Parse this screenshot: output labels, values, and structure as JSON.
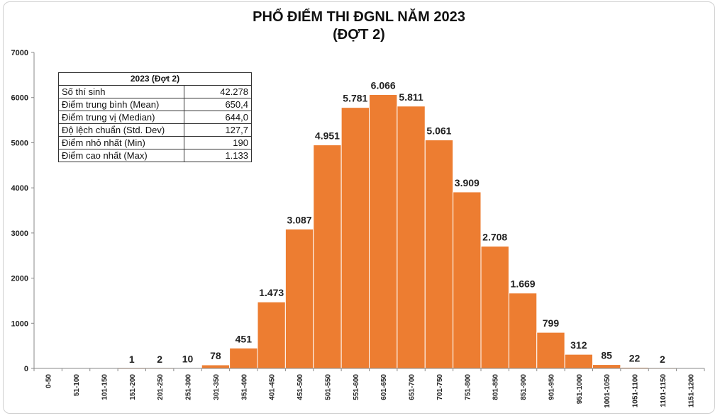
{
  "chart_data": {
    "type": "bar",
    "title": "PHỔ ĐIỂM THI ĐGNL NĂM 2023",
    "subtitle": "(ĐỢT 2)",
    "xlabel": "",
    "ylabel": "",
    "ylim": [
      0,
      7000
    ],
    "yticks": [
      "0",
      "1000",
      "2000",
      "3000",
      "4000",
      "5000",
      "6000",
      "7000"
    ],
    "grid": false,
    "bar_color": "#ED7D31",
    "categories": [
      "0-50",
      "51-100",
      "101-150",
      "151-200",
      "201-250",
      "251-300",
      "301-350",
      "351-400",
      "401-450",
      "451-500",
      "501-550",
      "551-600",
      "601-650",
      "651-700",
      "701-750",
      "751-800",
      "801-850",
      "851-900",
      "901-950",
      "951-1000",
      "1001-1050",
      "1051-1100",
      "1101-1150",
      "1151-1200"
    ],
    "values": [
      0,
      0,
      0,
      1,
      2,
      10,
      78,
      451,
      1473,
      3087,
      4951,
      5781,
      6066,
      5811,
      5061,
      3909,
      2708,
      1669,
      799,
      312,
      85,
      22,
      2,
      0
    ],
    "data_labels": [
      "",
      "",
      "",
      "1",
      "2",
      "10",
      "78",
      "451",
      "1.473",
      "3.087",
      "4.951",
      "5.781",
      "6.066",
      "5.811",
      "5.061",
      "3.909",
      "2.708",
      "1.669",
      "799",
      "312",
      "85",
      "22",
      "2",
      ""
    ]
  },
  "stats_table": {
    "header": "2023 (Đợt 2)",
    "rows": [
      {
        "label": "Số thí sinh",
        "value": "42.278"
      },
      {
        "label": "Điểm trung bình (Mean)",
        "value": "650,4"
      },
      {
        "label": "Điểm trung vị (Median)",
        "value": "644,0"
      },
      {
        "label": "Độ lệch chuẩn (Std. Dev)",
        "value": "127,7"
      },
      {
        "label": "Điểm nhỏ nhất (Min)",
        "value": "190"
      },
      {
        "label": "Điểm cao nhất (Max)",
        "value": "1.133"
      }
    ]
  }
}
